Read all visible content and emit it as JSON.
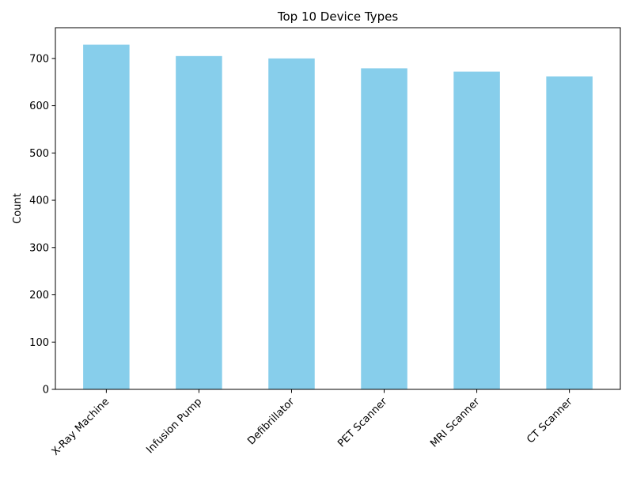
{
  "chart_data": {
    "type": "bar",
    "title": "Top 10 Device Types",
    "xlabel": "",
    "ylabel": "Count",
    "categories": [
      "X-Ray Machine",
      "Infusion Pump",
      "Defibrillator",
      "PET Scanner",
      "MRI Scanner",
      "CT Scanner"
    ],
    "values": [
      729,
      705,
      700,
      679,
      672,
      662
    ],
    "ylim": [
      0,
      765
    ],
    "yticks": [
      0,
      100,
      200,
      300,
      400,
      500,
      600,
      700
    ],
    "grid": false,
    "legend": "none",
    "bar_color": "#87CEEB"
  }
}
